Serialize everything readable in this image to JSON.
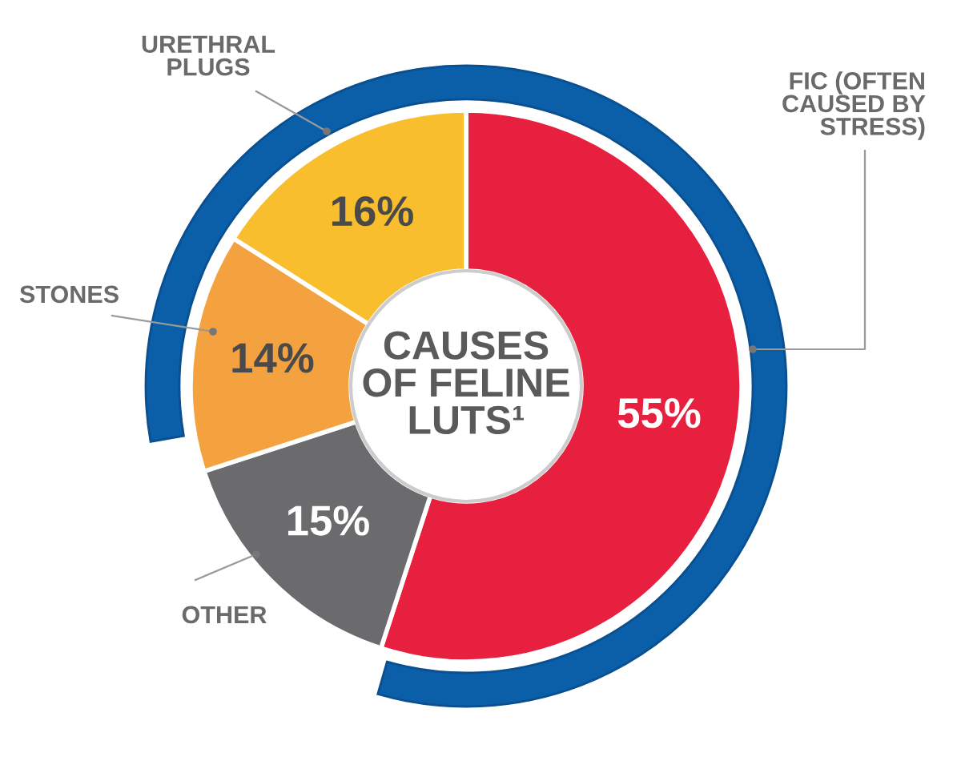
{
  "chart_data": {
    "type": "donut",
    "title": "CAUSES\nOF FELINE\nLUTS¹",
    "categories": [
      "FIC (OFTEN\nCAUSED BY\nSTRESS)",
      "OTHER",
      "STONES",
      "URETHRAL\nPLUGS"
    ],
    "values": [
      55,
      15,
      14,
      16
    ],
    "colors": [
      "#e8203f",
      "#6b6b6d",
      "#f4a13f",
      "#f8be2e"
    ],
    "value_labels": [
      "55%",
      "15%",
      "14%",
      "16%"
    ]
  }
}
